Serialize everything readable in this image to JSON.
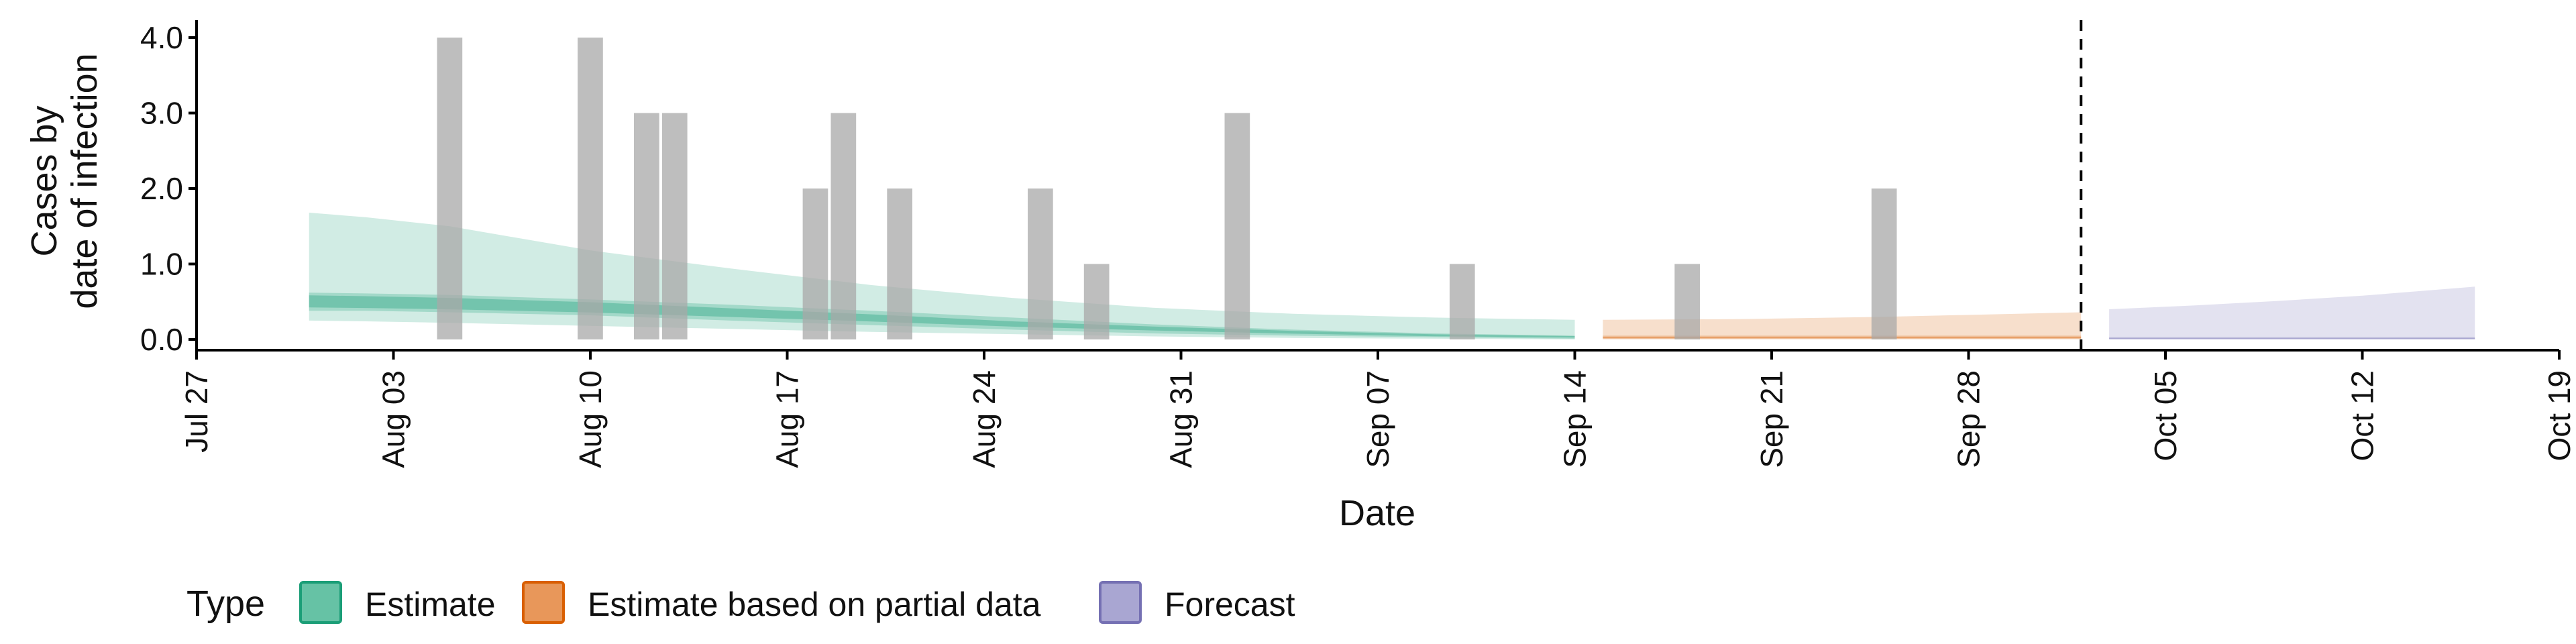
{
  "chart_data": {
    "type": "bar",
    "xlabel": "Date",
    "ylabel_lines": [
      "Cases by",
      "date of infection"
    ],
    "x_ticks": [
      "Jul 27",
      "Aug 03",
      "Aug 10",
      "Aug 17",
      "Aug 24",
      "Aug 31",
      "Sep 07",
      "Sep 14",
      "Sep 21",
      "Sep 28",
      "Oct 05",
      "Oct 12",
      "Oct 19"
    ],
    "x_tick_dates": [
      "2020-07-27",
      "2020-08-03",
      "2020-08-10",
      "2020-08-17",
      "2020-08-24",
      "2020-08-31",
      "2020-09-07",
      "2020-09-14",
      "2020-09-21",
      "2020-09-28",
      "2020-10-05",
      "2020-10-12",
      "2020-10-19"
    ],
    "x_range": [
      "2020-07-27",
      "2020-10-19"
    ],
    "y_ticks": [
      "0.0",
      "1.0",
      "2.0",
      "3.0",
      "4.0"
    ],
    "y_tick_values": [
      0,
      1,
      2,
      3,
      4
    ],
    "ylim": [
      0,
      4.2
    ],
    "forecast_start": "2020-10-02",
    "reported_cases": [
      {
        "date": "2020-08-05",
        "value": 4
      },
      {
        "date": "2020-08-10",
        "value": 4
      },
      {
        "date": "2020-08-12",
        "value": 3
      },
      {
        "date": "2020-08-13",
        "value": 3
      },
      {
        "date": "2020-08-18",
        "value": 2
      },
      {
        "date": "2020-08-19",
        "value": 3
      },
      {
        "date": "2020-08-21",
        "value": 2
      },
      {
        "date": "2020-08-26",
        "value": 2
      },
      {
        "date": "2020-08-28",
        "value": 1
      },
      {
        "date": "2020-09-02",
        "value": 3
      },
      {
        "date": "2020-09-10",
        "value": 1
      },
      {
        "date": "2020-09-18",
        "value": 1
      },
      {
        "date": "2020-09-25",
        "value": 2
      }
    ],
    "series": [
      {
        "name": "Estimate",
        "color": "#1b9e77",
        "dates": [
          "2020-07-31",
          "2020-08-02",
          "2020-08-05",
          "2020-08-10",
          "2020-08-15",
          "2020-08-20",
          "2020-08-25",
          "2020-08-30",
          "2020-09-04",
          "2020-09-09",
          "2020-09-14"
        ],
        "median": [
          0.5,
          0.49,
          0.47,
          0.42,
          0.35,
          0.28,
          0.2,
          0.14,
          0.09,
          0.05,
          0.03
        ],
        "lower_50": [
          0.38,
          0.38,
          0.36,
          0.32,
          0.25,
          0.19,
          0.13,
          0.08,
          0.05,
          0.03,
          0.01
        ],
        "upper_50": [
          0.62,
          0.61,
          0.59,
          0.53,
          0.46,
          0.38,
          0.29,
          0.2,
          0.13,
          0.08,
          0.05
        ],
        "lower_90": [
          0.25,
          0.24,
          0.22,
          0.18,
          0.14,
          0.1,
          0.07,
          0.04,
          0.02,
          0.01,
          0.0
        ],
        "upper_90": [
          1.68,
          1.62,
          1.5,
          1.18,
          0.94,
          0.72,
          0.55,
          0.42,
          0.34,
          0.29,
          0.26
        ]
      },
      {
        "name": "Estimate based on partial data",
        "color": "#d95f02",
        "dates": [
          "2020-09-15",
          "2020-09-20",
          "2020-09-25",
          "2020-10-02"
        ],
        "median": [
          0.02,
          0.02,
          0.02,
          0.02
        ],
        "lower_50": [
          0.01,
          0.01,
          0.01,
          0.01
        ],
        "upper_50": [
          0.05,
          0.05,
          0.05,
          0.05
        ],
        "lower_90": [
          0.0,
          0.0,
          0.0,
          0.0
        ],
        "upper_90": [
          0.26,
          0.27,
          0.3,
          0.36
        ]
      },
      {
        "name": "Forecast",
        "color": "#7570b3",
        "dates": [
          "2020-10-03",
          "2020-10-06",
          "2020-10-09",
          "2020-10-12",
          "2020-10-16"
        ],
        "median": [
          0.01,
          0.01,
          0.01,
          0.01,
          0.01
        ],
        "lower_50": [
          0.0,
          0.0,
          0.0,
          0.0,
          0.0
        ],
        "upper_50": [
          0.03,
          0.03,
          0.03,
          0.03,
          0.03
        ],
        "lower_90": [
          0.0,
          0.0,
          0.0,
          0.0,
          0.0
        ],
        "upper_90": [
          0.4,
          0.45,
          0.51,
          0.58,
          0.7
        ]
      }
    ],
    "legend": {
      "title": "Type",
      "position": "bottom",
      "items": [
        {
          "label": "Estimate",
          "fill": "#66c2a5",
          "stroke": "#1b9e77"
        },
        {
          "label": "Estimate based on partial data",
          "fill": "#e8975a",
          "stroke": "#d95f02"
        },
        {
          "label": "Forecast",
          "fill": "#a9a6d2",
          "stroke": "#7570b3"
        }
      ]
    },
    "colors": {
      "bars": "#a8a8a8",
      "axis": "#000000"
    }
  }
}
